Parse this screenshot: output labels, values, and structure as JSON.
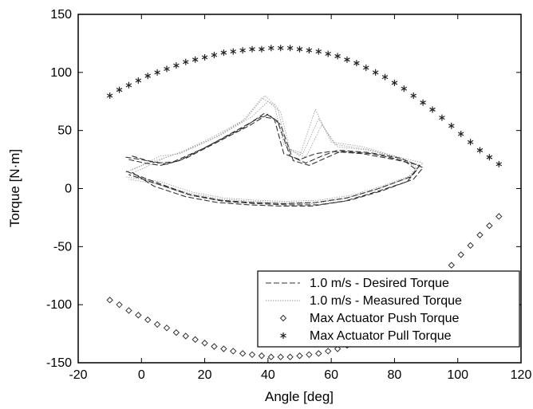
{
  "chart_data": {
    "type": "scatter",
    "title": "",
    "xlabel": "Angle [deg]",
    "ylabel": "Torque [N·m]",
    "xlim": [
      -20,
      120
    ],
    "ylim": [
      -150,
      150
    ],
    "xticks": [
      -20,
      0,
      20,
      40,
      60,
      80,
      100,
      120
    ],
    "yticks": [
      -150,
      -100,
      -50,
      0,
      50,
      100,
      150
    ],
    "grid": false,
    "legend_position": "lower-right",
    "series": [
      {
        "name": "1.0 m/s - Desired Torque",
        "style": "dashed-line",
        "color": "#333333",
        "cycles": [
          {
            "x": [
              -5,
              0,
              5,
              10,
              20,
              30,
              38,
              42,
              45,
              50,
              55,
              60,
              70,
              80,
              88,
              85,
              75,
              65,
              55,
              45,
              35,
              25,
              15,
              5,
              -5
            ],
            "y": [
              27,
              25,
              22,
              23,
              35,
              50,
              62,
              60,
              30,
              25,
              30,
              32,
              30,
              25,
              20,
              10,
              0,
              -8,
              -12,
              -13,
              -12,
              -10,
              -5,
              5,
              15
            ]
          },
          {
            "x": [
              -4,
              1,
              6,
              12,
              22,
              32,
              39,
              43,
              47,
              52,
              57,
              62,
              72,
              82,
              89,
              86,
              76,
              66,
              56,
              46,
              36,
              26,
              16,
              6,
              -4
            ],
            "y": [
              25,
              22,
              20,
              24,
              38,
              52,
              65,
              58,
              28,
              22,
              28,
              33,
              31,
              26,
              18,
              8,
              -2,
              -10,
              -14,
              -14,
              -13,
              -11,
              -6,
              3,
              12
            ]
          },
          {
            "x": [
              -3,
              2,
              8,
              14,
              24,
              34,
              40,
              44,
              48,
              53,
              58,
              63,
              73,
              83,
              87,
              84,
              74,
              64,
              54,
              44,
              34,
              24,
              14,
              4,
              -3
            ],
            "y": [
              28,
              24,
              21,
              26,
              40,
              54,
              64,
              55,
              24,
              20,
              26,
              32,
              30,
              24,
              16,
              6,
              -3,
              -11,
              -15,
              -15,
              -14,
              -12,
              -7,
              2,
              14
            ]
          }
        ]
      },
      {
        "name": "1.0 m/s - Measured Torque",
        "style": "dotted-line",
        "color": "#9a9a9a",
        "cycles": [
          {
            "x": [
              -5,
              0,
              6,
              12,
              22,
              32,
              38,
              42,
              45,
              50,
              55,
              60,
              70,
              80,
              89,
              86,
              76,
              66,
              56,
              46,
              36,
              26,
              16,
              6,
              -5
            ],
            "y": [
              14,
              20,
              28,
              30,
              42,
              58,
              78,
              72,
              38,
              28,
              68,
              40,
              36,
              28,
              22,
              12,
              2,
              -6,
              -10,
              -11,
              -10,
              -8,
              -3,
              6,
              10
            ]
          },
          {
            "x": [
              -4,
              1,
              7,
              13,
              23,
              33,
              39,
              43,
              46,
              51,
              56,
              61,
              71,
              81,
              88,
              85,
              75,
              65,
              55,
              45,
              35,
              25,
              15,
              5,
              -4
            ],
            "y": [
              12,
              18,
              26,
              32,
              45,
              60,
              80,
              70,
              35,
              30,
              60,
              38,
              34,
              27,
              20,
              10,
              0,
              -8,
              -12,
              -12,
              -11,
              -9,
              -4,
              4,
              8
            ]
          },
          {
            "x": [
              -3,
              2,
              8,
              15,
              25,
              35,
              40,
              44,
              47,
              52,
              57,
              62,
              72,
              82,
              87,
              84,
              74,
              64,
              54,
              44,
              34,
              24,
              14,
              4,
              -3
            ],
            "y": [
              16,
              22,
              27,
              34,
              46,
              62,
              75,
              66,
              33,
              27,
              55,
              36,
              33,
              26,
              18,
              9,
              -1,
              -9,
              -13,
              -13,
              -12,
              -10,
              -5,
              5,
              12
            ]
          }
        ]
      },
      {
        "name": "Max Actuator Push Torque",
        "marker": "diamond",
        "color": "#333333",
        "x": [
          -10,
          -7,
          -4,
          -1,
          2,
          5,
          8,
          11,
          14,
          17,
          20,
          23,
          26,
          29,
          32,
          35,
          38,
          41,
          44,
          47,
          50,
          53,
          56,
          59,
          62,
          65,
          68,
          71,
          74,
          77,
          80,
          83,
          86,
          89,
          92,
          95,
          98,
          101,
          104,
          107,
          110,
          113
        ],
        "y": [
          -96,
          -100,
          -105,
          -109,
          -113,
          -117,
          -120,
          -124,
          -127,
          -130,
          -133,
          -136,
          -138,
          -140,
          -142,
          -143,
          -144,
          -145,
          -145,
          -145,
          -144,
          -143,
          -142,
          -140,
          -138,
          -135,
          -132,
          -128,
          -124,
          -119,
          -113,
          -107,
          -100,
          -92,
          -84,
          -75,
          -66,
          -57,
          -49,
          -40,
          -32,
          -24
        ]
      },
      {
        "name": "Max Actuator Pull Torque",
        "marker": "asterisk",
        "color": "#222222",
        "x": [
          -10,
          -7,
          -4,
          -1,
          2,
          5,
          8,
          11,
          14,
          17,
          20,
          23,
          26,
          29,
          32,
          35,
          38,
          41,
          44,
          47,
          50,
          53,
          56,
          59,
          62,
          65,
          68,
          71,
          74,
          77,
          80,
          83,
          86,
          89,
          92,
          95,
          98,
          101,
          104,
          107,
          110,
          113
        ],
        "y": [
          80,
          85,
          89,
          93,
          97,
          100,
          103,
          106,
          109,
          111,
          113,
          115,
          117,
          118,
          119,
          120,
          120,
          121,
          121,
          121,
          120,
          119,
          118,
          116,
          114,
          111,
          108,
          104,
          100,
          96,
          91,
          86,
          80,
          74,
          68,
          61,
          54,
          47,
          40,
          33,
          27,
          21
        ]
      }
    ]
  }
}
